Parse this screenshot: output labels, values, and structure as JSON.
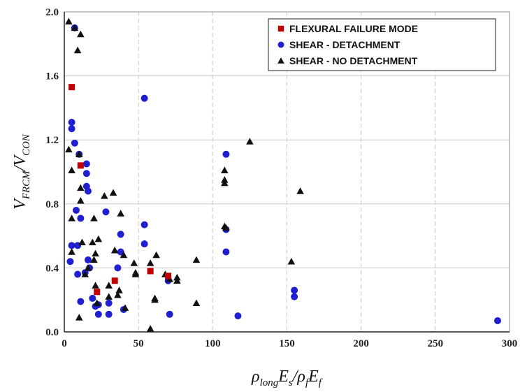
{
  "chart_data": {
    "type": "scatter",
    "title": "",
    "xlabel": {
      "parts": [
        {
          "t": "ρ",
          "sub": "long"
        },
        {
          "t": "E",
          "sub": "s"
        },
        {
          "t": "/ρ",
          "sub": "f"
        },
        {
          "t": "E",
          "sub": "f"
        }
      ]
    },
    "ylabel": {
      "parts": [
        {
          "t": "V",
          "sub": "FRCM"
        },
        {
          "t": "/V",
          "sub": "CON"
        }
      ]
    },
    "xlim": [
      0,
      300
    ],
    "ylim": [
      0,
      2.0
    ],
    "x_ticks": [
      "0",
      "50",
      "100",
      "150",
      "200",
      "250",
      "300"
    ],
    "y_ticks": [
      "0.0",
      "0.4",
      "0.8",
      "1.2",
      "1.6",
      "2.0"
    ],
    "grid": {
      "x": "dashed-vertical",
      "y": "solid-horizontal"
    },
    "legend": "top-right",
    "series": [
      {
        "name": "FLEXURAL FAILURE MODE",
        "marker": "square",
        "color": "#c00000",
        "points": [
          [
            5,
            1.53
          ],
          [
            11,
            1.04
          ],
          [
            22,
            0.25
          ],
          [
            34,
            0.32
          ],
          [
            58,
            0.38
          ],
          [
            70,
            0.35
          ]
        ]
      },
      {
        "name": "SHEAR - DETACHMENT",
        "marker": "circle",
        "color": "#1f1fd0",
        "points": [
          [
            4,
            0.44
          ],
          [
            5,
            0.54
          ],
          [
            5,
            1.31
          ],
          [
            5,
            1.27
          ],
          [
            7,
            1.9
          ],
          [
            7,
            1.18
          ],
          [
            8,
            0.76
          ],
          [
            9,
            0.54
          ],
          [
            9,
            0.36
          ],
          [
            10,
            1.11
          ],
          [
            11,
            0.71
          ],
          [
            11,
            0.19
          ],
          [
            14,
            0.37
          ],
          [
            15,
            1.05
          ],
          [
            15,
            0.99
          ],
          [
            15,
            0.91
          ],
          [
            16,
            0.88
          ],
          [
            16,
            0.45
          ],
          [
            17,
            0.4
          ],
          [
            19,
            0.21
          ],
          [
            21,
            0.16
          ],
          [
            23,
            0.11
          ],
          [
            23,
            0.17
          ],
          [
            28,
            0.75
          ],
          [
            30,
            0.11
          ],
          [
            30,
            0.18
          ],
          [
            36,
            0.4
          ],
          [
            38,
            0.61
          ],
          [
            38,
            0.5
          ],
          [
            40,
            0.14
          ],
          [
            54,
            1.46
          ],
          [
            54,
            0.67
          ],
          [
            54,
            0.55
          ],
          [
            70,
            0.32
          ],
          [
            71,
            0.11
          ],
          [
            109,
            0.64
          ],
          [
            109,
            0.5
          ],
          [
            109,
            1.11
          ],
          [
            117,
            0.1
          ],
          [
            155,
            0.26
          ],
          [
            155,
            0.22
          ],
          [
            292,
            0.07
          ]
        ]
      },
      {
        "name": "SHEAR - NO DETACHMENT",
        "marker": "triangle",
        "color": "#111111",
        "points": [
          [
            3,
            1.94
          ],
          [
            3,
            1.14
          ],
          [
            5,
            0.71
          ],
          [
            5,
            1.01
          ],
          [
            5,
            0.5
          ],
          [
            7,
            1.9
          ],
          [
            9,
            1.76
          ],
          [
            10,
            1.11
          ],
          [
            11,
            0.9
          ],
          [
            11,
            0.82
          ],
          [
            11,
            1.86
          ],
          [
            10,
            0.09
          ],
          [
            12,
            0.56
          ],
          [
            14,
            0.36
          ],
          [
            16,
            0.4
          ],
          [
            19,
            0.56
          ],
          [
            20,
            0.45
          ],
          [
            20,
            0.71
          ],
          [
            21,
            0.49
          ],
          [
            21,
            0.29
          ],
          [
            22,
            0.18
          ],
          [
            23,
            0.58
          ],
          [
            27,
            0.85
          ],
          [
            30,
            0.22
          ],
          [
            30,
            0.29
          ],
          [
            33,
            0.87
          ],
          [
            34,
            0.51
          ],
          [
            36,
            0.23
          ],
          [
            37,
            0.26
          ],
          [
            38,
            0.74
          ],
          [
            40,
            0.48
          ],
          [
            41,
            0.15
          ],
          [
            47,
            0.43
          ],
          [
            48,
            0.36
          ],
          [
            48,
            0.37
          ],
          [
            58,
            0.02
          ],
          [
            58,
            0.43
          ],
          [
            62,
            0.48
          ],
          [
            61,
            0.21
          ],
          [
            61,
            0.2
          ],
          [
            68,
            0.36
          ],
          [
            71,
            0.33
          ],
          [
            76,
            0.34
          ],
          [
            76,
            0.32
          ],
          [
            89,
            0.45
          ],
          [
            89,
            0.18
          ],
          [
            108,
            1.01
          ],
          [
            108,
            0.95
          ],
          [
            108,
            0.93
          ],
          [
            108,
            0.66
          ],
          [
            109,
            0.65
          ],
          [
            125,
            1.19
          ],
          [
            153,
            0.44
          ],
          [
            159,
            0.88
          ]
        ]
      }
    ]
  }
}
